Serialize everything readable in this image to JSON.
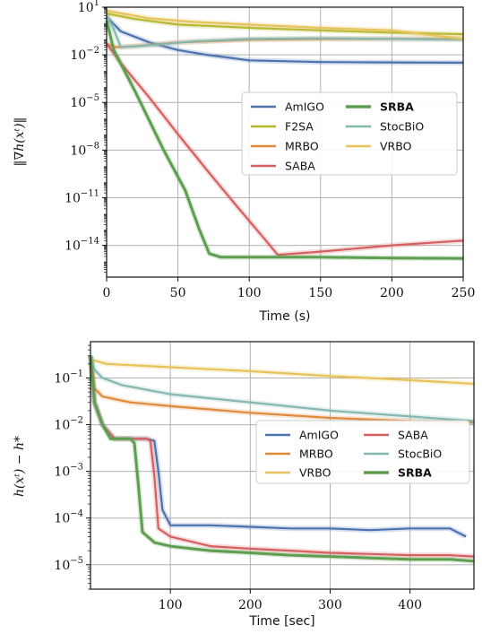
{
  "chart_data": [
    {
      "type": "line",
      "xlabel": "Time (s)",
      "ylabel": "‖∇h(xᵗ)‖",
      "yscale": "log",
      "xlim": [
        0,
        250
      ],
      "ylim": [
        1e-16,
        10
      ],
      "x_ticks": [
        "0",
        "50",
        "100",
        "150",
        "200",
        "250"
      ],
      "y_ticks": [
        {
          "value": 10,
          "label": "10",
          "exp": "1"
        },
        {
          "value": 0.01,
          "label": "10",
          "exp": "−2"
        },
        {
          "value": 1e-05,
          "label": "10",
          "exp": "−5"
        },
        {
          "value": 1e-08,
          "label": "10",
          "exp": "−8"
        },
        {
          "value": 1e-11,
          "label": "10",
          "exp": "−11"
        },
        {
          "value": 1e-14,
          "label": "10",
          "exp": "−14"
        }
      ],
      "grid": true,
      "legend": {
        "placement": "center-right",
        "columns": 2,
        "entries": [
          "AmIGO",
          "F2SA",
          "MRBO",
          "SABA",
          "SRBA",
          "StocBiO",
          "VRBO"
        ]
      },
      "series": [
        {
          "name": "AmIGO",
          "color": "#4c72b0",
          "bold": false,
          "points": [
            [
              0,
              2.5
            ],
            [
              10,
              0.3
            ],
            [
              30,
              0.06
            ],
            [
              50,
              0.02
            ],
            [
              70,
              0.01
            ],
            [
              100,
              0.0045
            ],
            [
              150,
              0.0035
            ],
            [
              200,
              0.0033
            ],
            [
              250,
              0.0032
            ]
          ]
        },
        {
          "name": "F2SA",
          "color": "#b5b82d",
          "bold": false,
          "points": [
            [
              0,
              4
            ],
            [
              20,
              1.8
            ],
            [
              50,
              0.8
            ],
            [
              100,
              0.5
            ],
            [
              150,
              0.35
            ],
            [
              200,
              0.25
            ],
            [
              250,
              0.2
            ]
          ]
        },
        {
          "name": "MRBO",
          "color": "#e08a3c",
          "bold": false,
          "points": [
            [
              0,
              0.05
            ],
            [
              5,
              0.03
            ],
            [
              20,
              0.035
            ],
            [
              50,
              0.06
            ],
            [
              100,
              0.09
            ],
            [
              150,
              0.1
            ],
            [
              200,
              0.1
            ],
            [
              250,
              0.1
            ]
          ]
        },
        {
          "name": "SABA",
          "color": "#d65f5f",
          "bold": false,
          "points": [
            [
              0,
              0.05
            ],
            [
              10,
              0.003
            ],
            [
              30,
              2e-05
            ],
            [
              50,
              1e-07
            ],
            [
              70,
              6e-10
            ],
            [
              90,
              4e-12
            ],
            [
              110,
              3e-14
            ],
            [
              120,
              2.5e-15
            ],
            [
              150,
              4e-15
            ],
            [
              200,
              1e-14
            ],
            [
              250,
              2e-14
            ]
          ]
        },
        {
          "name": "SRBA",
          "color": "#5e9e50",
          "bold": true,
          "points": [
            [
              0,
              1.5
            ],
            [
              5,
              0.02
            ],
            [
              20,
              5e-05
            ],
            [
              40,
              1e-08
            ],
            [
              55,
              3e-11
            ],
            [
              65,
              1e-13
            ],
            [
              72,
              3e-15
            ],
            [
              80,
              1.8e-15
            ],
            [
              150,
              1.8e-15
            ],
            [
              200,
              1.6e-15
            ],
            [
              250,
              1.5e-15
            ]
          ]
        },
        {
          "name": "StocBiO",
          "color": "#84b8b0",
          "bold": false,
          "points": [
            [
              0,
              3
            ],
            [
              5,
              0.4
            ],
            [
              10,
              0.03
            ],
            [
              30,
              0.04
            ],
            [
              60,
              0.07
            ],
            [
              100,
              0.1
            ],
            [
              150,
              0.11
            ],
            [
              200,
              0.1
            ],
            [
              250,
              0.09
            ]
          ]
        },
        {
          "name": "VRBO",
          "color": "#e8c25a",
          "bold": false,
          "points": [
            [
              0,
              6
            ],
            [
              30,
              2
            ],
            [
              60,
              1.2
            ],
            [
              100,
              0.8
            ],
            [
              150,
              0.5
            ],
            [
              200,
              0.35
            ],
            [
              250,
              0.1
            ]
          ]
        }
      ]
    },
    {
      "type": "line",
      "xlabel": "Time [sec]",
      "ylabel": "h(xᵗ) − h*",
      "yscale": "log",
      "xlim": [
        0,
        480
      ],
      "ylim": [
        3e-06,
        0.6
      ],
      "x_ticks": [
        "100",
        "200",
        "300",
        "400"
      ],
      "y_ticks": [
        {
          "value": 0.1,
          "label": "10",
          "exp": "−1"
        },
        {
          "value": 0.01,
          "label": "10",
          "exp": "−2"
        },
        {
          "value": 0.001,
          "label": "10",
          "exp": "−3"
        },
        {
          "value": 0.0001,
          "label": "10",
          "exp": "−4"
        },
        {
          "value": 1e-05,
          "label": "10",
          "exp": "−5"
        }
      ],
      "grid": true,
      "legend": {
        "placement": "center-right",
        "columns": 2,
        "entries": [
          "AmIGO",
          "MRBO",
          "VRBO",
          "SABA",
          "StocBiO",
          "SRBA"
        ]
      },
      "series": [
        {
          "name": "AmIGO",
          "color": "#4c72b0",
          "bold": false,
          "points": [
            [
              0,
              0.3
            ],
            [
              5,
              0.03
            ],
            [
              15,
              0.01
            ],
            [
              30,
              0.005
            ],
            [
              70,
              0.005
            ],
            [
              80,
              0.0045
            ],
            [
              85,
              0.001
            ],
            [
              90,
              0.00015
            ],
            [
              100,
              7e-05
            ],
            [
              150,
              7e-05
            ],
            [
              200,
              6.5e-05
            ],
            [
              250,
              6e-05
            ],
            [
              300,
              6e-05
            ],
            [
              350,
              5.5e-05
            ],
            [
              400,
              6e-05
            ],
            [
              450,
              6e-05
            ],
            [
              470,
              4e-05
            ]
          ]
        },
        {
          "name": "MRBO",
          "color": "#e08a3c",
          "bold": false,
          "points": [
            [
              0,
              0.3
            ],
            [
              5,
              0.06
            ],
            [
              15,
              0.04
            ],
            [
              50,
              0.03
            ],
            [
              100,
              0.025
            ],
            [
              200,
              0.018
            ],
            [
              300,
              0.014
            ],
            [
              400,
              0.012
            ],
            [
              480,
              0.011
            ]
          ]
        },
        {
          "name": "VRBO",
          "color": "#e8c25a",
          "bold": false,
          "points": [
            [
              0,
              0.25
            ],
            [
              20,
              0.2
            ],
            [
              100,
              0.17
            ],
            [
              200,
              0.14
            ],
            [
              300,
              0.11
            ],
            [
              400,
              0.09
            ],
            [
              480,
              0.075
            ]
          ]
        },
        {
          "name": "SABA",
          "color": "#d65f5f",
          "bold": false,
          "points": [
            [
              0,
              0.3
            ],
            [
              5,
              0.03
            ],
            [
              15,
              0.01
            ],
            [
              30,
              0.005
            ],
            [
              70,
              0.005
            ],
            [
              75,
              0.0045
            ],
            [
              80,
              0.0008
            ],
            [
              85,
              6e-05
            ],
            [
              100,
              4e-05
            ],
            [
              150,
              2.5e-05
            ],
            [
              200,
              2.2e-05
            ],
            [
              250,
              2e-05
            ],
            [
              300,
              1.8e-05
            ],
            [
              350,
              1.7e-05
            ],
            [
              400,
              1.6e-05
            ],
            [
              450,
              1.6e-05
            ],
            [
              480,
              1.5e-05
            ]
          ]
        },
        {
          "name": "StocBiO",
          "color": "#84b8b0",
          "bold": false,
          "points": [
            [
              0,
              0.3
            ],
            [
              5,
              0.15
            ],
            [
              15,
              0.1
            ],
            [
              40,
              0.07
            ],
            [
              100,
              0.045
            ],
            [
              200,
              0.03
            ],
            [
              300,
              0.02
            ],
            [
              400,
              0.015
            ],
            [
              480,
              0.012
            ]
          ]
        },
        {
          "name": "SRBA",
          "color": "#5e9e50",
          "bold": true,
          "points": [
            [
              0,
              0.3
            ],
            [
              5,
              0.03
            ],
            [
              15,
              0.01
            ],
            [
              25,
              0.005
            ],
            [
              50,
              0.005
            ],
            [
              55,
              0.004
            ],
            [
              60,
              0.0005
            ],
            [
              65,
              5e-05
            ],
            [
              80,
              3e-05
            ],
            [
              100,
              2.5e-05
            ],
            [
              150,
              2e-05
            ],
            [
              200,
              1.8e-05
            ],
            [
              250,
              1.6e-05
            ],
            [
              300,
              1.5e-05
            ],
            [
              350,
              1.4e-05
            ],
            [
              400,
              1.3e-05
            ],
            [
              450,
              1.3e-05
            ],
            [
              480,
              1.2e-05
            ]
          ]
        }
      ]
    }
  ]
}
